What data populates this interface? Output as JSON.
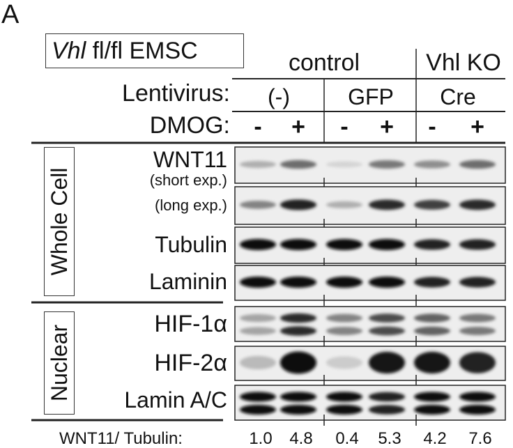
{
  "panel_letter": "A",
  "cell_label_italic": "Vhl",
  "cell_label_rest": " fl/fl EMSC",
  "groups": [
    {
      "label": "control"
    },
    {
      "label": "Vhl KO"
    }
  ],
  "lentivirus": {
    "label": "Lentivirus:",
    "values": [
      "(-)",
      "GFP",
      "Cre"
    ]
  },
  "dmog": {
    "label": "DMOG:",
    "values": [
      "-",
      "+",
      "-",
      "+",
      "-",
      "+"
    ]
  },
  "sections": [
    {
      "label": "Whole Cell"
    },
    {
      "label": "Nuclear"
    }
  ],
  "rows": [
    {
      "label": "WNT11",
      "sublabel": "(short exp.)",
      "intensity": [
        0.25,
        0.55,
        0.08,
        0.5,
        0.4,
        0.55
      ],
      "bands": 1
    },
    {
      "label": "(long exp.)",
      "intensity": [
        0.45,
        0.9,
        0.25,
        0.85,
        0.75,
        0.85
      ],
      "bands": 1
    },
    {
      "label": "Tubulin",
      "intensity": [
        1,
        1,
        1,
        1,
        0.9,
        0.9
      ],
      "bands": 1
    },
    {
      "label": "Laminin",
      "intensity": [
        1,
        1,
        1,
        1,
        0.9,
        0.9
      ],
      "bands": 1
    },
    {
      "label": "HIF-1α",
      "intensity": [
        0.3,
        0.85,
        0.45,
        0.7,
        0.6,
        0.5
      ],
      "bands": 2
    },
    {
      "label": "HIF-2α",
      "intensity": [
        0.2,
        1,
        0.12,
        0.95,
        0.95,
        0.9
      ],
      "bands": 1
    },
    {
      "label": "Lamin A/C",
      "intensity": [
        1,
        1,
        1,
        0.9,
        1,
        1
      ],
      "bands": 2
    }
  ],
  "ratio": {
    "label": "WNT11/ Tubulin:",
    "values": [
      "1.0",
      "4.8",
      "0.4",
      "5.3",
      "4.2",
      "7.6"
    ]
  }
}
